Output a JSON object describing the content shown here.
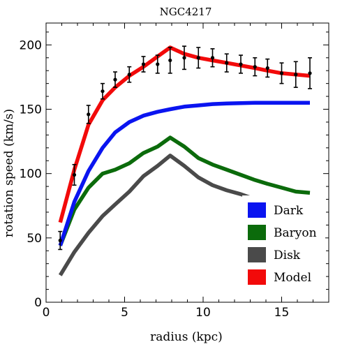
{
  "chart_data": {
    "type": "line",
    "title": "NGC4217",
    "xlabel": "radius (kpc)",
    "ylabel": "rotation speed (km/s)",
    "xlim": [
      0,
      18
    ],
    "ylim": [
      0,
      217
    ],
    "xticks": [
      0,
      5,
      10,
      15
    ],
    "yticks": [
      0,
      50,
      100,
      150,
      200
    ],
    "grid": false,
    "legend_position": "bottom-right",
    "series": [
      {
        "name": "Dark",
        "color": "#0a14f0",
        "x": [
          0.9,
          1.8,
          2.7,
          3.6,
          4.4,
          5.3,
          6.2,
          7.1,
          7.9,
          8.8,
          9.7,
          10.6,
          11.5,
          12.4,
          13.3,
          14.1,
          15.0,
          15.9,
          16.8
        ],
        "y": [
          44,
          78,
          102,
          120,
          132,
          140,
          145,
          148,
          150,
          152,
          153,
          154,
          154.5,
          154.8,
          155,
          155,
          155,
          155,
          155
        ]
      },
      {
        "name": "Baryon",
        "color": "#0b6b0b",
        "x": [
          0.9,
          1.8,
          2.7,
          3.6,
          4.4,
          5.3,
          6.2,
          7.1,
          7.9,
          8.8,
          9.7,
          10.6,
          11.5,
          12.4,
          13.3,
          14.1,
          15.0,
          15.9,
          16.8
        ],
        "y": [
          44,
          72,
          89,
          100,
          103,
          108,
          116,
          121,
          128,
          121,
          112,
          107,
          103,
          99,
          95,
          92,
          89,
          86,
          85
        ]
      },
      {
        "name": "Disk",
        "color": "#4a4a4a",
        "x": [
          0.9,
          1.8,
          2.7,
          3.6,
          4.4,
          5.3,
          6.2,
          7.1,
          7.9,
          8.8,
          9.7,
          10.6,
          11.5,
          12.4,
          13.3,
          14.1,
          15.0,
          15.9,
          16.8
        ],
        "y": [
          21,
          39,
          54,
          67,
          76,
          86,
          98,
          106,
          114,
          106,
          97,
          91,
          87,
          84,
          80,
          77,
          74,
          72,
          70
        ]
      },
      {
        "name": "Model",
        "color": "#f20a0a",
        "x": [
          0.9,
          1.8,
          2.7,
          3.6,
          4.4,
          5.3,
          6.2,
          7.1,
          7.9,
          8.8,
          9.7,
          10.6,
          11.5,
          12.4,
          13.3,
          14.1,
          15.0,
          15.9,
          16.8
        ],
        "y": [
          62,
          103,
          138,
          157,
          167,
          176,
          183,
          191,
          198,
          193,
          190,
          188,
          186,
          184,
          182,
          180,
          178,
          177,
          176
        ]
      }
    ],
    "observed": {
      "color": "#000000",
      "x": [
        0.9,
        1.8,
        2.7,
        3.6,
        4.4,
        5.3,
        6.2,
        7.1,
        7.9,
        8.8,
        9.7,
        10.6,
        11.5,
        12.4,
        13.3,
        14.1,
        15.0,
        15.9,
        16.8
      ],
      "y": [
        48,
        99,
        146,
        164,
        173,
        177,
        185,
        185,
        188,
        190,
        190,
        190,
        186,
        185,
        183,
        182,
        178,
        177,
        178
      ],
      "err": [
        7,
        8,
        7,
        6,
        6,
        6,
        6,
        7,
        10,
        9,
        8,
        7,
        7,
        7,
        7,
        7,
        8,
        10,
        12
      ]
    }
  }
}
